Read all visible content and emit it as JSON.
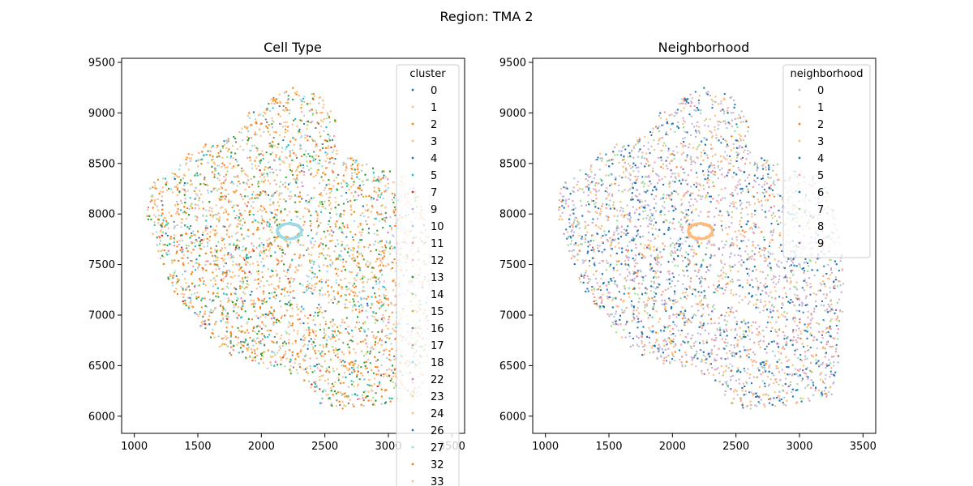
{
  "figure": {
    "suptitle": "Region: TMA 2"
  },
  "chart_data": [
    {
      "type": "scatter",
      "title": "Cell Type",
      "xlabel": "",
      "ylabel": "",
      "xlim": [
        900,
        3600
      ],
      "ylim": [
        5830,
        9540
      ],
      "xticks": [
        1000,
        1500,
        2000,
        2500,
        3000,
        3500
      ],
      "yticks": [
        6000,
        6500,
        7000,
        7500,
        8000,
        8500,
        9000,
        9500
      ],
      "legend": {
        "title": "cluster",
        "placement": "upper right",
        "entries": [
          {
            "label": "0",
            "color": "#1f77b4"
          },
          {
            "label": "1",
            "color": "#ffbb78"
          },
          {
            "label": "2",
            "color": "#ff7f0e"
          },
          {
            "label": "3",
            "color": "#ffbb78"
          },
          {
            "label": "4",
            "color": "#1f77b4"
          },
          {
            "label": "5",
            "color": "#17becf"
          },
          {
            "label": "7",
            "color": "#d62728"
          },
          {
            "label": "9",
            "color": "#c5b0d5"
          },
          {
            "label": "10",
            "color": "#aec7e8"
          },
          {
            "label": "11",
            "color": "#ff9896"
          },
          {
            "label": "12",
            "color": "#f7b6d2"
          },
          {
            "label": "13",
            "color": "#2ca02c"
          },
          {
            "label": "14",
            "color": "#98df8a"
          },
          {
            "label": "15",
            "color": "#bcbd22"
          },
          {
            "label": "16",
            "color": "#7f7f7f"
          },
          {
            "label": "17",
            "color": "#c49c94"
          },
          {
            "label": "18",
            "color": "#9edae5"
          },
          {
            "label": "22",
            "color": "#e377c2"
          },
          {
            "label": "23",
            "color": "#dbdb8d"
          },
          {
            "label": "24",
            "color": "#ffbb78"
          },
          {
            "label": "26",
            "color": "#1f77b4"
          },
          {
            "label": "27",
            "color": "#9edae5"
          },
          {
            "label": "32",
            "color": "#ff7f0e"
          },
          {
            "label": "33",
            "color": "#ffbb78"
          }
        ]
      },
      "series_colors": [
        {
          "color": "#ffbb78",
          "weight": 30
        },
        {
          "color": "#ff7f0e",
          "weight": 20
        },
        {
          "color": "#2ca02c",
          "weight": 10
        },
        {
          "color": "#9edae5",
          "weight": 9
        },
        {
          "color": "#17becf",
          "weight": 6
        },
        {
          "color": "#aec7e8",
          "weight": 5
        },
        {
          "color": "#98df8a",
          "weight": 5
        },
        {
          "color": "#7f7f7f",
          "weight": 4
        },
        {
          "color": "#1f77b4",
          "weight": 3
        },
        {
          "color": "#c5b0d5",
          "weight": 2
        },
        {
          "color": "#ff9896",
          "weight": 2
        },
        {
          "color": "#d62728",
          "weight": 1
        },
        {
          "color": "#e377c2",
          "weight": 1
        },
        {
          "color": "#bcbd22",
          "weight": 1
        }
      ]
    },
    {
      "type": "scatter",
      "title": "Neighborhood",
      "xlabel": "",
      "ylabel": "",
      "xlim": [
        900,
        3600
      ],
      "ylim": [
        5830,
        9540
      ],
      "xticks": [
        1000,
        1500,
        2000,
        2500,
        3000,
        3500
      ],
      "yticks": [
        6000,
        6500,
        7000,
        7500,
        8000,
        8500,
        9000,
        9500
      ],
      "legend": {
        "title": "neighborhood",
        "placement": "upper right",
        "entries": [
          {
            "label": "0",
            "color": "#c5b0d5"
          },
          {
            "label": "1",
            "color": "#ffbb78"
          },
          {
            "label": "2",
            "color": "#ff7f0e"
          },
          {
            "label": "3",
            "color": "#ffbb78"
          },
          {
            "label": "4",
            "color": "#1f77b4"
          },
          {
            "label": "5",
            "color": "#ff9896"
          },
          {
            "label": "6",
            "color": "#1f77b4"
          },
          {
            "label": "7",
            "color": "#98df8a"
          },
          {
            "label": "8",
            "color": "#aec7e8"
          },
          {
            "label": "9",
            "color": "#9467bd"
          }
        ]
      },
      "series_colors": [
        {
          "color": "#c5b0d5",
          "weight": 26
        },
        {
          "color": "#1f77b4",
          "weight": 22
        },
        {
          "color": "#ffbb78",
          "weight": 22
        },
        {
          "color": "#98df8a",
          "weight": 10
        },
        {
          "color": "#aec7e8",
          "weight": 8
        },
        {
          "color": "#ff9896",
          "weight": 8
        },
        {
          "color": "#9467bd",
          "weight": 2
        },
        {
          "color": "#ff7f0e",
          "weight": 2
        }
      ]
    }
  ]
}
